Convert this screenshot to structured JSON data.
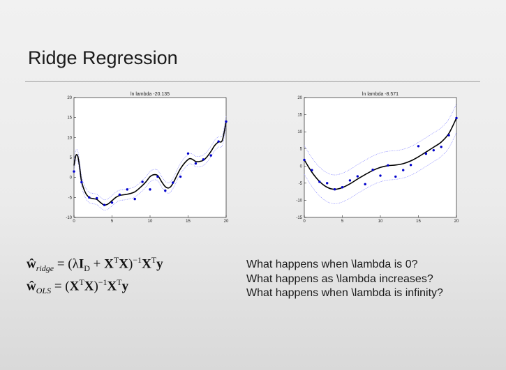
{
  "slide": {
    "title": "Ridge Regression"
  },
  "equations": {
    "ridge_lhs": "ŵ",
    "ridge_sub": "ridge",
    "ridge_rhs_parts": [
      "= (λ",
      "I",
      "D",
      " + ",
      "X",
      "T",
      "X",
      ")",
      "−1",
      "X",
      "T",
      "y"
    ],
    "ols_lhs": "ŵ",
    "ols_sub": "OLS",
    "ols_rhs_parts": [
      "= (",
      "X",
      "T",
      "X",
      ")",
      "−1",
      "X",
      "T",
      "y"
    ]
  },
  "questions": [
    "What happens when \\lambda is 0?",
    "What happens as \\lambda increases?",
    "What happens when \\lambda is infinity?"
  ],
  "chart_data": [
    {
      "type": "scatter",
      "title": "ln lambda -20.135",
      "xlim": [
        0,
        20
      ],
      "ylim": [
        -10,
        20
      ],
      "xticks": [
        0,
        5,
        10,
        15,
        20
      ],
      "yticks": [
        -10,
        -5,
        0,
        5,
        10,
        15,
        20
      ],
      "grid": false,
      "colors": {
        "points": "#0000cc",
        "fit": "#000000",
        "band": "#8a8aff"
      },
      "series": [
        {
          "role": "points",
          "x": [
            0,
            1,
            2,
            3,
            4,
            5,
            6,
            7,
            8,
            9,
            10,
            11,
            12,
            13,
            14,
            15,
            16,
            17,
            18,
            19,
            20
          ],
          "y": [
            1.5,
            -1.2,
            -5,
            -5.2,
            -6.9,
            -6.3,
            -4.3,
            -3,
            -5.4,
            -1.1,
            -3,
            0.2,
            -3.3,
            -1.3,
            0.2,
            6,
            3.5,
            4.5,
            5.5,
            9,
            14
          ]
        },
        {
          "role": "fit",
          "x": [
            0,
            0.25,
            0.5,
            0.75,
            1,
            1.5,
            2,
            2.5,
            3,
            3.5,
            4,
            4.5,
            5,
            5.5,
            6,
            7,
            8,
            9,
            9.5,
            10,
            10.5,
            11,
            11.5,
            12,
            12.5,
            13,
            14,
            15,
            15.5,
            16,
            16.5,
            17,
            17.5,
            18,
            18.5,
            19,
            19.5,
            20
          ],
          "y": [
            3,
            5.5,
            5.3,
            2.5,
            -1,
            -3.8,
            -5,
            -5.3,
            -5.5,
            -6.3,
            -6.9,
            -6.6,
            -5.8,
            -5,
            -4.5,
            -4.2,
            -3.6,
            -2,
            -1,
            0.2,
            0.7,
            0.5,
            -1,
            -2.3,
            -2.6,
            -1.5,
            2.2,
            4.5,
            4.6,
            4,
            4,
            4.3,
            5.2,
            6.5,
            8,
            8.9,
            9.3,
            14
          ]
        }
      ]
    },
    {
      "type": "scatter",
      "title": "ln lambda -8.571",
      "xlim": [
        0,
        20
      ],
      "ylim": [
        -15,
        20
      ],
      "xticks": [
        0,
        5,
        10,
        15,
        20
      ],
      "yticks": [
        -15,
        -10,
        -5,
        0,
        5,
        10,
        15,
        20
      ],
      "grid": false,
      "colors": {
        "points": "#0000cc",
        "fit": "#000000",
        "band": "#8a8aff"
      },
      "series": [
        {
          "role": "points",
          "x": [
            0,
            1,
            2,
            3,
            4,
            5,
            6,
            7,
            8,
            9,
            10,
            11,
            12,
            13,
            14,
            15,
            16,
            17,
            18,
            19,
            20
          ],
          "y": [
            1.8,
            -1.2,
            -4.6,
            -5,
            -6.8,
            -6.2,
            -4.2,
            -3,
            -5.3,
            -1.1,
            -2.8,
            0.2,
            -3.1,
            -1.2,
            0.3,
            5.8,
            3.6,
            4.6,
            5.6,
            9,
            14
          ]
        },
        {
          "role": "fit",
          "x": [
            0,
            1,
            2,
            3,
            4,
            5,
            6,
            7,
            8,
            9,
            10,
            11,
            12,
            13,
            14,
            15,
            16,
            17,
            18,
            19,
            20
          ],
          "y": [
            1.8,
            -1.8,
            -4.5,
            -6.2,
            -6.8,
            -6.3,
            -5.2,
            -3.8,
            -2.5,
            -1.3,
            -0.4,
            0.1,
            0.3,
            0.7,
            1.5,
            2.7,
            4.1,
            5.5,
            7,
            9.5,
            14
          ]
        }
      ]
    }
  ]
}
